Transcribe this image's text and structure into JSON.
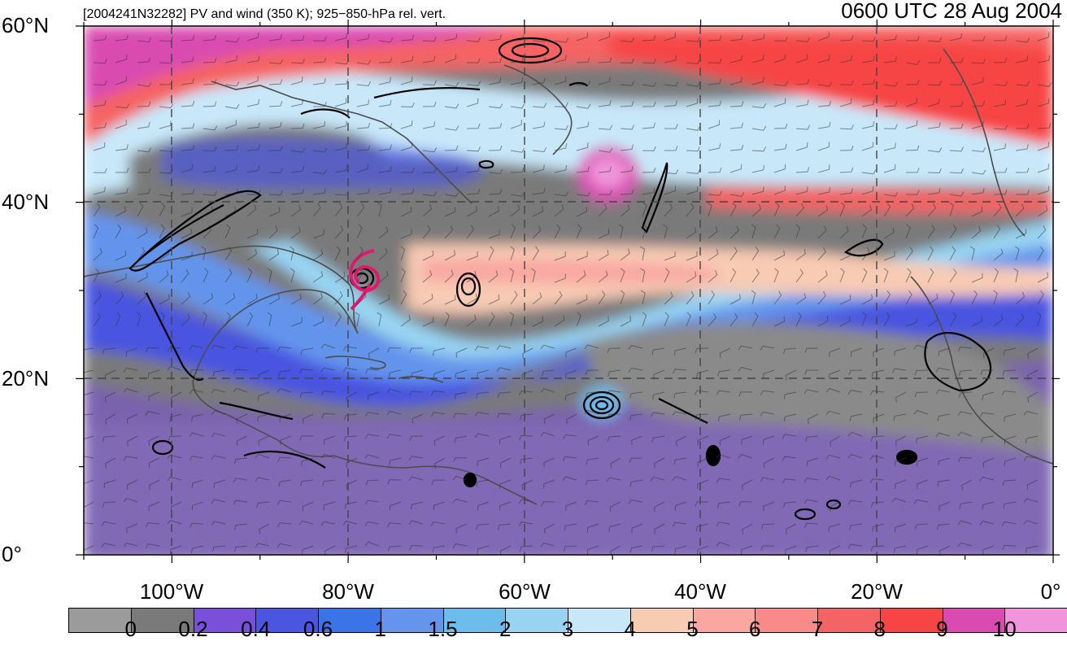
{
  "header": {
    "left_title": "[2004241N32282] PV and wind (350 K); 925−850-hPa rel. vert.",
    "right_title": "0600 UTC 28 Aug 2004"
  },
  "map": {
    "lat_labels": [
      "60°N",
      "40°N",
      "20°N",
      "0°"
    ],
    "lat_values": [
      60,
      40,
      20,
      0
    ],
    "lon_labels": [
      "100°W",
      "80°W",
      "60°W",
      "40°W",
      "20°W",
      "0°"
    ],
    "lon_values": [
      -100,
      -80,
      -60,
      -40,
      -20,
      0
    ],
    "lon_range": [
      -110,
      0
    ],
    "lat_range": [
      0,
      60
    ]
  },
  "colorbar": {
    "labels": [
      "0",
      "0.2",
      "0.4",
      "0.6",
      "1",
      "1.5",
      "2",
      "3",
      "4",
      "5",
      "6",
      "7",
      "8",
      "9",
      "10"
    ],
    "colors": [
      "#9b9b9b",
      "#7a7a7a",
      "#7a4fd9",
      "#4a55e0",
      "#3a74e6",
      "#6494ec",
      "#6cbcec",
      "#98d4f2",
      "#c8e8fa",
      "#f8cbb3",
      "#f9a7a0",
      "#f88a8a",
      "#f56464",
      "#f74444",
      "#d94bb0",
      "#f094dc"
    ]
  }
}
